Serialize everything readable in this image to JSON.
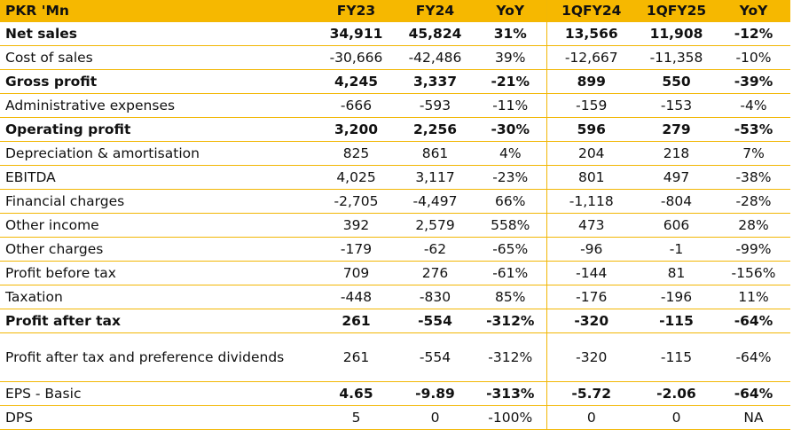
{
  "header": [
    "PKR 'Mn",
    "FY23",
    "FY24",
    "YoY",
    "1QFY24",
    "1QFY25",
    "YoY"
  ],
  "rows": [
    {
      "label": "Net sales",
      "bold": true,
      "values": [
        "34,911",
        "45,824",
        "31%",
        "13,566",
        "11,908",
        "-12%"
      ]
    },
    {
      "label": "Cost of sales",
      "bold": false,
      "values": [
        "-30,666",
        "-42,486",
        "39%",
        "-12,667",
        "-11,358",
        "-10%"
      ]
    },
    {
      "label": "Gross profit",
      "bold": true,
      "values": [
        "4,245",
        "3,337",
        "-21%",
        "899",
        "550",
        "-39%"
      ]
    },
    {
      "label": "Administrative expenses",
      "bold": false,
      "values": [
        "-666",
        "-593",
        "-11%",
        "-159",
        "-153",
        "-4%"
      ]
    },
    {
      "label": "Operating profit",
      "bold": true,
      "values": [
        "3,200",
        "2,256",
        "-30%",
        "596",
        "279",
        "-53%"
      ]
    },
    {
      "label": "Depreciation & amortisation",
      "bold": false,
      "values": [
        "825",
        "861",
        "4%",
        "204",
        "218",
        "7%"
      ]
    },
    {
      "label": "EBITDA",
      "bold": false,
      "values": [
        "4,025",
        "3,117",
        "-23%",
        "801",
        "497",
        "-38%"
      ]
    },
    {
      "label": "Financial charges",
      "bold": false,
      "values": [
        "-2,705",
        "-4,497",
        "66%",
        "-1,118",
        "-804",
        "-28%"
      ]
    },
    {
      "label": "Other income",
      "bold": false,
      "values": [
        "392",
        "2,579",
        "558%",
        "473",
        "606",
        "28%"
      ]
    },
    {
      "label": "Other charges",
      "bold": false,
      "values": [
        "-179",
        "-62",
        "-65%",
        "-96",
        "-1",
        "-99%"
      ]
    },
    {
      "label": "Profit before tax",
      "bold": false,
      "values": [
        "709",
        "276",
        "-61%",
        "-144",
        "81",
        "-156%"
      ]
    },
    {
      "label": "Taxation",
      "bold": false,
      "values": [
        "-448",
        "-830",
        "85%",
        "-176",
        "-196",
        "11%"
      ]
    },
    {
      "label": "Profit after tax",
      "bold": true,
      "values": [
        "261",
        "-554",
        "-312%",
        "-320",
        "-115",
        "-64%"
      ]
    },
    {
      "label": "Profit after tax and preference dividends",
      "bold": false,
      "values": [
        "261",
        "-554",
        "-312%",
        "-320",
        "-115",
        "-64%"
      ]
    },
    {
      "label": "EPS - Basic",
      "bold": false,
      "values": [
        "4.65",
        "-9.89",
        "-313%",
        "-5.72",
        "-2.06",
        "-64%"
      ]
    },
    {
      "label": "DPS",
      "bold": false,
      "values": [
        "5",
        "0",
        "-100%",
        "0",
        "0",
        "NA"
      ]
    }
  ]
}
